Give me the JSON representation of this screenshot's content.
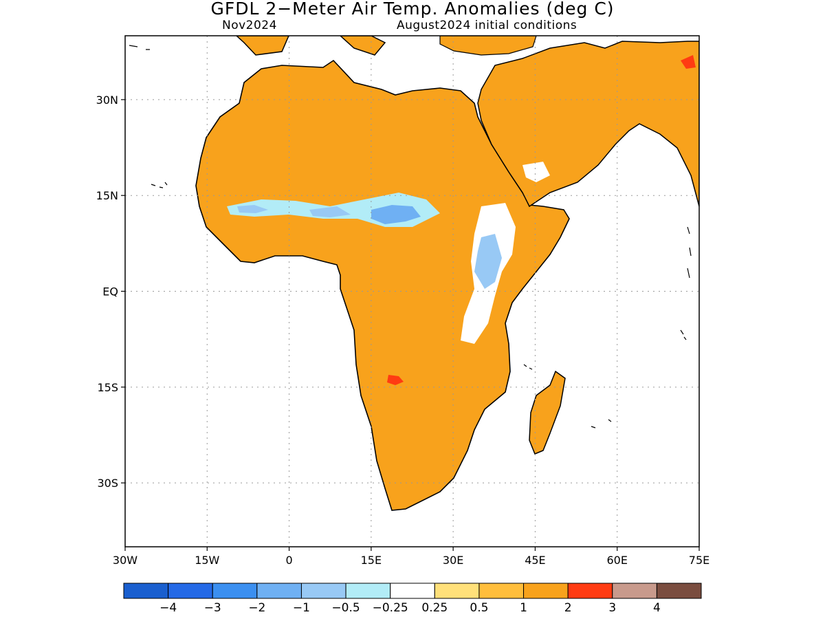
{
  "title": "GFDL 2−Meter Air Temp. Anomalies (deg C)",
  "subtitle_left": "Nov2024",
  "subtitle_right": "August2024 initial conditions",
  "map": {
    "lon_range": [
      -30,
      75
    ],
    "lat_range": [
      -40,
      40
    ],
    "lon_ticks": [
      {
        "lon": -30,
        "label": "30W"
      },
      {
        "lon": -15,
        "label": "15W"
      },
      {
        "lon": 0,
        "label": "0"
      },
      {
        "lon": 15,
        "label": "15E"
      },
      {
        "lon": 30,
        "label": "30E"
      },
      {
        "lon": 45,
        "label": "45E"
      },
      {
        "lon": 60,
        "label": "60E"
      },
      {
        "lon": 75,
        "label": "75E"
      }
    ],
    "lat_ticks": [
      {
        "lat": 30,
        "label": "30N"
      },
      {
        "lat": 15,
        "label": "15N"
      },
      {
        "lat": 0,
        "label": "EQ"
      },
      {
        "lat": -15,
        "label": "15S"
      },
      {
        "lat": -30,
        "label": "30S"
      }
    ],
    "grid": true,
    "dominant_anomaly_color": "#f8a21c"
  },
  "colorbar": {
    "colors": [
      "#1a5fcf",
      "#2469e6",
      "#3b8ff0",
      "#6fb0f3",
      "#98c9f5",
      "#b2ecf7",
      "#ffffff",
      "#ffe07a",
      "#ffbe3c",
      "#f8a21c",
      "#ff3b12",
      "#c89a8c",
      "#7a4d3f"
    ],
    "labels": [
      "−4",
      "−3",
      "−2",
      "−1",
      "−0.5",
      "−0.25",
      "0.25",
      "0.5",
      "1",
      "2",
      "3",
      "4"
    ]
  }
}
